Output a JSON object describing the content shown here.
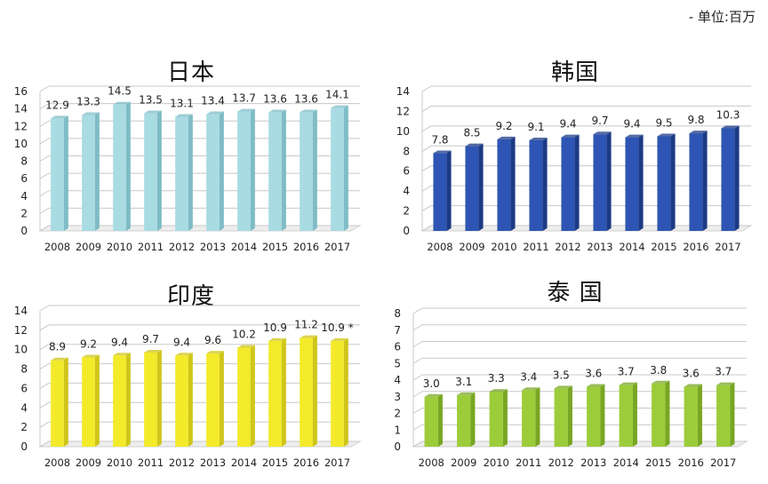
{
  "unit_label": "- 单位:百万",
  "chart_data": [
    {
      "type": "bar",
      "title": "日本",
      "categories": [
        "2008",
        "2009",
        "2010",
        "2011",
        "2012",
        "2013",
        "2014",
        "2015",
        "2016",
        "2017"
      ],
      "values": [
        12.9,
        13.3,
        14.5,
        13.5,
        13.1,
        13.4,
        13.7,
        13.6,
        13.6,
        14.1
      ],
      "value_labels": [
        "12.9",
        "13.3",
        "14.5",
        "13.5",
        "13.1",
        "13.4",
        "13.7",
        "13.6",
        "13.6",
        "14.1"
      ],
      "yticks": [
        0,
        2,
        4,
        6,
        8,
        10,
        12,
        14,
        16
      ],
      "ylim": [
        0,
        16
      ],
      "color": "#a9dbe2",
      "color_dark": "#7fbcc6",
      "grid": true
    },
    {
      "type": "bar",
      "title": "韩国",
      "categories": [
        "2008",
        "2009",
        "2010",
        "2011",
        "2012",
        "2013",
        "2014",
        "2015",
        "2016",
        "2017"
      ],
      "values": [
        7.8,
        8.5,
        9.2,
        9.1,
        9.4,
        9.7,
        9.4,
        9.5,
        9.8,
        10.3
      ],
      "value_labels": [
        "7.8",
        "8.5",
        "9.2",
        "9.1",
        "9.4",
        "9.7",
        "9.4",
        "9.5",
        "9.8",
        "10.3"
      ],
      "yticks": [
        0,
        2,
        4,
        6,
        8,
        10,
        12,
        14
      ],
      "ylim": [
        0,
        14
      ],
      "color": "#2e55b3",
      "color_dark": "#1c3a85",
      "grid": true
    },
    {
      "type": "bar",
      "title": "印度",
      "categories": [
        "2008",
        "2009",
        "2010",
        "2011",
        "2012",
        "2013",
        "2014",
        "2015",
        "2016",
        "2017"
      ],
      "values": [
        8.9,
        9.2,
        9.4,
        9.7,
        9.4,
        9.6,
        10.2,
        10.9,
        11.2,
        10.9
      ],
      "value_labels": [
        "8.9",
        "9.2",
        "9.4",
        "9.7",
        "9.4",
        "9.6",
        "10.2",
        "10.9",
        "11.2",
        "10.9 *"
      ],
      "yticks": [
        0,
        2,
        4,
        6,
        8,
        10,
        12,
        14
      ],
      "ylim": [
        0,
        14
      ],
      "color": "#f3ea2a",
      "color_dark": "#cfc61a",
      "grid": true
    },
    {
      "type": "bar",
      "title": "泰 国",
      "categories": [
        "2008",
        "2009",
        "2010",
        "2011",
        "2012",
        "2013",
        "2014",
        "2015",
        "2016",
        "2017"
      ],
      "values": [
        3.0,
        3.1,
        3.3,
        3.4,
        3.5,
        3.6,
        3.7,
        3.8,
        3.6,
        3.7
      ],
      "value_labels": [
        "3.0",
        "3.1",
        "3.3",
        "3.4",
        "3.5",
        "3.6",
        "3.7",
        "3.8",
        "3.6",
        "3.7"
      ],
      "yticks": [
        0,
        1,
        2,
        3,
        4,
        5,
        6,
        7,
        8
      ],
      "ylim": [
        0,
        8
      ],
      "color": "#9ccc3a",
      "color_dark": "#78a623",
      "grid": true
    }
  ]
}
